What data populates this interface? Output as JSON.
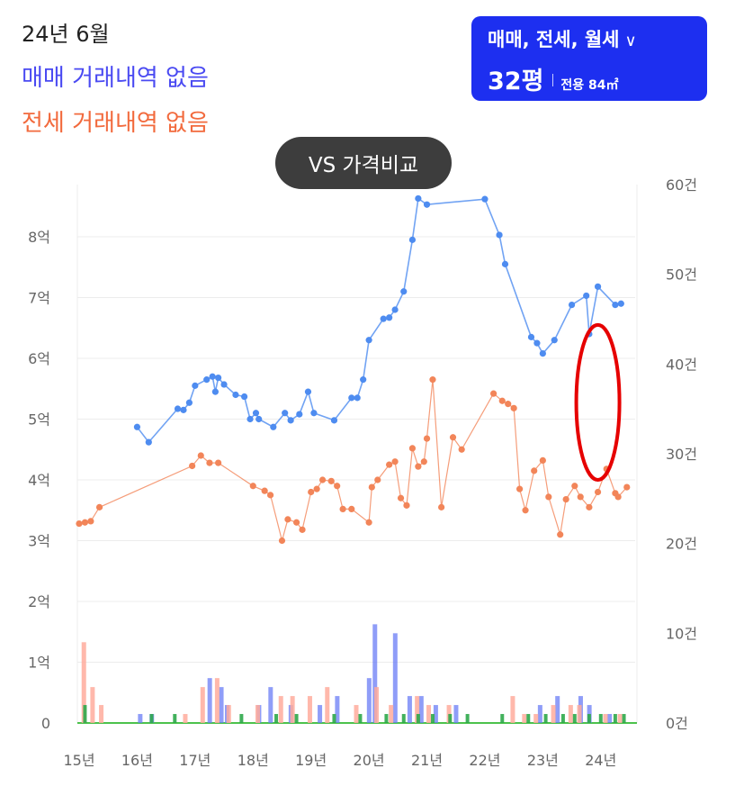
{
  "header": {
    "date": "24년 6월",
    "sale_status": "매매 거래내역 없음",
    "jeonse_status": "전세 거래내역 없음"
  },
  "filter": {
    "types": "매매, 전세, 월세",
    "chevron_icon": "chevron-down-icon",
    "pyeong": "32평",
    "area": "전용 84㎡"
  },
  "compare_button": "VS 가격비교",
  "colors": {
    "sale": "#4e8cf0",
    "jeonse": "#f28559",
    "count_sale": "#6a7cf5",
    "count_jeonse": "#ffab9c",
    "count_other": "#2ea84a",
    "highlight": "#e60000",
    "filter_bg": "#1d2ff0"
  },
  "chart_data": {
    "type": "line",
    "x_ticks": [
      "15년",
      "16년",
      "17년",
      "18년",
      "19년",
      "20년",
      "21년",
      "22년",
      "23년",
      "24년"
    ],
    "x_range": [
      2015,
      2024.5
    ],
    "y_left_ticks": [
      "0",
      "1억",
      "2억",
      "3억",
      "4억",
      "5억",
      "6억",
      "7억",
      "8억"
    ],
    "y_left_range": [
      0,
      8.8
    ],
    "y_right_ticks": [
      "0건",
      "10건",
      "20건",
      "30건",
      "40건",
      "50건",
      "60건"
    ],
    "y_right_range": [
      0,
      60
    ],
    "series": [
      {
        "key": "sale",
        "unit": "억",
        "points": [
          [
            2016.0,
            4.87
          ],
          [
            2016.2,
            4.62
          ],
          [
            2016.7,
            5.17
          ],
          [
            2016.8,
            5.15
          ],
          [
            2016.9,
            5.27
          ],
          [
            2017.0,
            5.55
          ],
          [
            2017.2,
            5.65
          ],
          [
            2017.3,
            5.7
          ],
          [
            2017.35,
            5.45
          ],
          [
            2017.4,
            5.68
          ],
          [
            2017.5,
            5.57
          ],
          [
            2017.7,
            5.4
          ],
          [
            2017.85,
            5.37
          ],
          [
            2017.95,
            5.0
          ],
          [
            2018.05,
            5.1
          ],
          [
            2018.1,
            5.0
          ],
          [
            2018.35,
            4.87
          ],
          [
            2018.55,
            5.1
          ],
          [
            2018.65,
            4.98
          ],
          [
            2018.8,
            5.08
          ],
          [
            2018.95,
            5.45
          ],
          [
            2019.05,
            5.1
          ],
          [
            2019.4,
            4.98
          ],
          [
            2019.7,
            5.35
          ],
          [
            2019.8,
            5.35
          ],
          [
            2019.9,
            5.65
          ],
          [
            2020.0,
            6.3
          ],
          [
            2020.25,
            6.65
          ],
          [
            2020.35,
            6.67
          ],
          [
            2020.45,
            6.8
          ],
          [
            2020.6,
            7.1
          ],
          [
            2020.75,
            7.95
          ],
          [
            2020.85,
            8.63
          ],
          [
            2021.0,
            8.53
          ],
          [
            2022.0,
            8.62
          ],
          [
            2022.25,
            8.03
          ],
          [
            2022.35,
            7.55
          ],
          [
            2022.8,
            6.35
          ],
          [
            2022.9,
            6.25
          ],
          [
            2023.0,
            6.08
          ],
          [
            2023.2,
            6.3
          ],
          [
            2023.5,
            6.88
          ],
          [
            2023.75,
            7.03
          ],
          [
            2023.8,
            6.4
          ],
          [
            2023.95,
            7.18
          ],
          [
            2024.25,
            6.88
          ],
          [
            2024.35,
            6.9
          ]
        ]
      },
      {
        "key": "jeonse",
        "unit": "억",
        "points": [
          [
            2015.0,
            3.28
          ],
          [
            2015.1,
            3.3
          ],
          [
            2015.2,
            3.32
          ],
          [
            2015.35,
            3.55
          ],
          [
            2016.95,
            4.23
          ],
          [
            2017.1,
            4.4
          ],
          [
            2017.25,
            4.28
          ],
          [
            2017.4,
            4.28
          ],
          [
            2018.0,
            3.9
          ],
          [
            2018.2,
            3.82
          ],
          [
            2018.3,
            3.75
          ],
          [
            2018.5,
            3.0
          ],
          [
            2018.6,
            3.35
          ],
          [
            2018.75,
            3.3
          ],
          [
            2018.85,
            3.18
          ],
          [
            2019.0,
            3.8
          ],
          [
            2019.1,
            3.85
          ],
          [
            2019.2,
            4.0
          ],
          [
            2019.35,
            3.98
          ],
          [
            2019.45,
            3.9
          ],
          [
            2019.55,
            3.52
          ],
          [
            2019.7,
            3.52
          ],
          [
            2020.0,
            3.3
          ],
          [
            2020.05,
            3.88
          ],
          [
            2020.15,
            4.0
          ],
          [
            2020.35,
            4.25
          ],
          [
            2020.45,
            4.3
          ],
          [
            2020.55,
            3.7
          ],
          [
            2020.65,
            3.58
          ],
          [
            2020.75,
            4.52
          ],
          [
            2020.85,
            4.22
          ],
          [
            2020.95,
            4.3
          ],
          [
            2021.0,
            4.68
          ],
          [
            2021.1,
            5.65
          ],
          [
            2021.25,
            3.55
          ],
          [
            2021.45,
            4.7
          ],
          [
            2021.6,
            4.5
          ],
          [
            2022.15,
            5.42
          ],
          [
            2022.3,
            5.3
          ],
          [
            2022.4,
            5.25
          ],
          [
            2022.5,
            5.18
          ],
          [
            2022.6,
            3.85
          ],
          [
            2022.7,
            3.5
          ],
          [
            2022.85,
            4.15
          ],
          [
            2023.0,
            4.32
          ],
          [
            2023.1,
            3.72
          ],
          [
            2023.3,
            3.1
          ],
          [
            2023.4,
            3.68
          ],
          [
            2023.55,
            3.9
          ],
          [
            2023.65,
            3.72
          ],
          [
            2023.8,
            3.55
          ],
          [
            2023.95,
            3.8
          ],
          [
            2024.1,
            4.18
          ],
          [
            2024.25,
            3.78
          ],
          [
            2024.3,
            3.72
          ],
          [
            2024.45,
            3.88
          ]
        ]
      }
    ],
    "count_bars": {
      "unit": "건",
      "sale": [
        [
          2016.1,
          1
        ],
        [
          2016.3,
          1
        ],
        [
          2017.3,
          5
        ],
        [
          2017.5,
          4
        ],
        [
          2017.6,
          2
        ],
        [
          2018.15,
          2
        ],
        [
          2018.35,
          4
        ],
        [
          2018.7,
          2
        ],
        [
          2019.2,
          2
        ],
        [
          2019.5,
          3
        ],
        [
          2020.05,
          5
        ],
        [
          2020.15,
          11
        ],
        [
          2020.5,
          10
        ],
        [
          2020.75,
          3
        ],
        [
          2020.95,
          3
        ],
        [
          2021.2,
          2
        ],
        [
          2021.55,
          2
        ],
        [
          2023.0,
          2
        ],
        [
          2023.3,
          3
        ],
        [
          2023.7,
          3
        ],
        [
          2023.85,
          2
        ],
        [
          2024.2,
          1
        ]
      ],
      "jeonse": [
        [
          2015.05,
          9
        ],
        [
          2015.2,
          4
        ],
        [
          2015.35,
          2
        ],
        [
          2016.8,
          1
        ],
        [
          2017.1,
          4
        ],
        [
          2017.35,
          5
        ],
        [
          2017.55,
          2
        ],
        [
          2018.05,
          2
        ],
        [
          2018.45,
          3
        ],
        [
          2018.65,
          3
        ],
        [
          2018.95,
          3
        ],
        [
          2019.25,
          4
        ],
        [
          2019.75,
          2
        ],
        [
          2020.1,
          4
        ],
        [
          2020.35,
          2
        ],
        [
          2020.8,
          3
        ],
        [
          2021.0,
          2
        ],
        [
          2021.35,
          2
        ],
        [
          2022.45,
          3
        ],
        [
          2022.65,
          1
        ],
        [
          2022.85,
          1
        ],
        [
          2023.15,
          2
        ],
        [
          2023.45,
          2
        ],
        [
          2023.6,
          2
        ],
        [
          2024.05,
          1
        ],
        [
          2024.3,
          1
        ]
      ],
      "other": [
        [
          2015.1,
          2
        ],
        [
          2016.25,
          1
        ],
        [
          2016.65,
          1
        ],
        [
          2017.8,
          1
        ],
        [
          2018.4,
          1
        ],
        [
          2018.75,
          1
        ],
        [
          2019.4,
          1
        ],
        [
          2019.85,
          1
        ],
        [
          2020.3,
          1
        ],
        [
          2020.6,
          1
        ],
        [
          2020.85,
          1
        ],
        [
          2021.1,
          1
        ],
        [
          2021.4,
          1
        ],
        [
          2021.7,
          1
        ],
        [
          2022.3,
          1
        ],
        [
          2022.75,
          1
        ],
        [
          2023.05,
          1
        ],
        [
          2023.35,
          1
        ],
        [
          2023.55,
          1
        ],
        [
          2023.8,
          1
        ],
        [
          2024.0,
          1
        ],
        [
          2024.25,
          1
        ],
        [
          2024.4,
          1
        ]
      ]
    },
    "highlight_range": {
      "x_center": 2023.95,
      "y_range": [
        4.0,
        6.55
      ]
    },
    "grid": true,
    "legend": "none"
  }
}
